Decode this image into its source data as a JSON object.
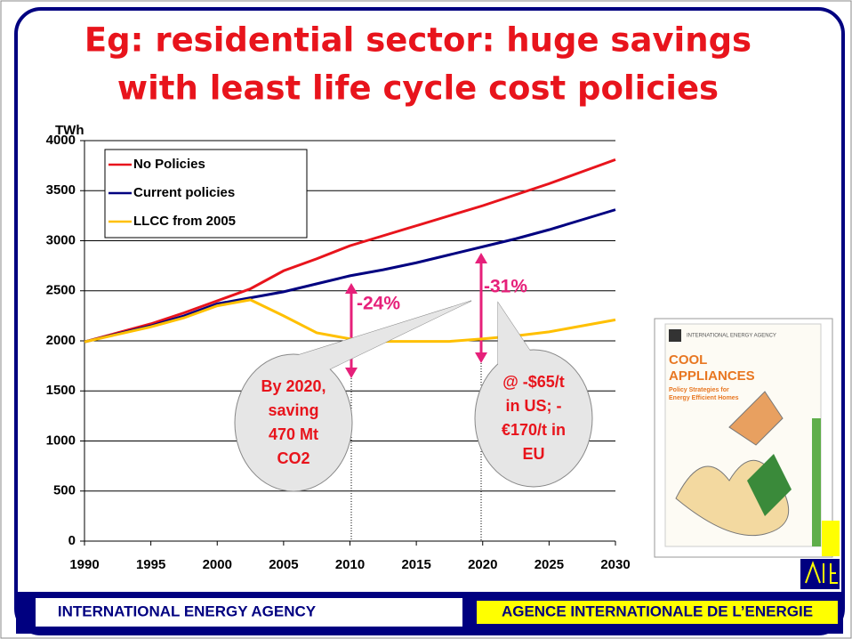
{
  "title_lines": [
    "Eg: residential sector: huge savings",
    "with least life cycle cost policies"
  ],
  "chart_data": {
    "type": "line",
    "y_label": "TWh",
    "x": [
      1990,
      1992.5,
      1995,
      1997.5,
      2000,
      2002.5,
      2005,
      2007.5,
      2010,
      2012.5,
      2015,
      2017.5,
      2020,
      2022.5,
      2025,
      2027.5,
      2030
    ],
    "series": [
      {
        "name": "No Policies",
        "color": "#e8141c",
        "values": [
          1990,
          2080,
          2170,
          2280,
          2400,
          2520,
          2700,
          2820,
          2950,
          3050,
          3150,
          3250,
          3350,
          3460,
          3570,
          3690,
          3810
        ]
      },
      {
        "name": "Current policies",
        "color": "#000080",
        "values": [
          1990,
          2070,
          2150,
          2250,
          2370,
          2430,
          2490,
          2570,
          2650,
          2710,
          2780,
          2860,
          2940,
          3020,
          3110,
          3210,
          3310
        ]
      },
      {
        "name": "LLCC from 2005",
        "color": "#ffc000",
        "values": [
          1990,
          2065,
          2140,
          2230,
          2350,
          2410,
          2250,
          2080,
          2020,
          1995,
          1995,
          1995,
          2020,
          2050,
          2090,
          2150,
          2210
        ]
      }
    ],
    "xlim": [
      1990,
      2030
    ],
    "xticks": [
      1990,
      1995,
      2000,
      2005,
      2010,
      2015,
      2020,
      2025,
      2030
    ],
    "ylim": [
      0,
      4000
    ],
    "yticks": [
      0,
      500,
      1000,
      1500,
      2000,
      2500,
      3000,
      3500,
      4000
    ],
    "grid": true,
    "legend": "upper left",
    "annotations": [
      "-24%",
      "-31%"
    ],
    "callouts": [
      [
        "By 2020,",
        "saving",
        "470 Mt",
        "CO2"
      ],
      [
        "@ -$65/t",
        "in US; -",
        "€170/t in",
        "EU"
      ]
    ]
  },
  "cover": {
    "agency": "INTERNATIONAL ENERGY AGENCY",
    "title_lines": [
      "COOL",
      "APPLIANCES"
    ],
    "subtitle_lines": [
      "Policy Strategies for",
      "Energy Efficient Homes"
    ]
  },
  "footer": {
    "left": "INTERNATIONAL ENERGY AGENCY",
    "right": "AGENCE INTERNATIONALE DE L’ENERGIE"
  }
}
